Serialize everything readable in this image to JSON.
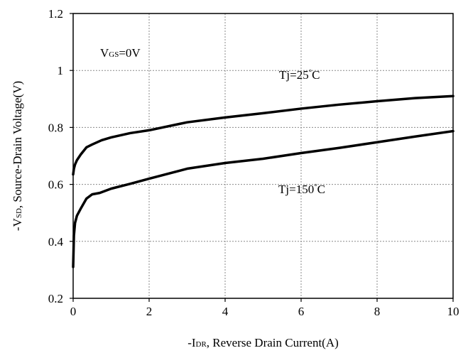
{
  "chart_data": {
    "type": "line",
    "title": "",
    "xlabel": {
      "prefix": "-I",
      "sub": "DR",
      "suffix": ", Reverse Drain Current(A)"
    },
    "ylabel": {
      "prefix": "-V",
      "sub": "SD",
      "suffix": ", Source-Drain Voltage(V)"
    },
    "xlim": [
      0,
      10
    ],
    "ylim": [
      0.2,
      1.2
    ],
    "xticks": [
      0,
      2,
      4,
      6,
      8,
      10
    ],
    "yticks": [
      0.2,
      0.4,
      0.6,
      0.8,
      1,
      1.2
    ],
    "xtick_labels": [
      "0",
      "2",
      "4",
      "6",
      "8",
      "10"
    ],
    "ytick_labels": [
      "0.2",
      "0.4",
      "0.6",
      "0.8",
      "1",
      "1.2"
    ],
    "grid": true,
    "annotations": [
      {
        "text": "VGS=0V",
        "prefix": "V",
        "sub": "GS",
        "suffix": "=0V"
      },
      {
        "text": "Tj=25°C",
        "prefix": "Tj=25",
        "sub": "°",
        "suffix": "C"
      },
      {
        "text": "Tj=150°C",
        "prefix": "Tj=150",
        "sub": "°",
        "suffix": "C"
      }
    ],
    "series": [
      {
        "x": [
          0,
          0.02,
          0.05,
          0.1,
          0.2,
          0.35,
          0.5,
          0.75,
          1.0,
          1.5,
          2.0,
          3.0,
          4.0,
          5.0,
          6.0,
          7.0,
          8.0,
          9.0,
          10.0
        ],
        "y": [
          0.635,
          0.655,
          0.67,
          0.685,
          0.705,
          0.73,
          0.74,
          0.755,
          0.765,
          0.78,
          0.79,
          0.818,
          0.835,
          0.85,
          0.866,
          0.88,
          0.892,
          0.903,
          0.91
        ]
      },
      {
        "x": [
          0,
          0.02,
          0.05,
          0.1,
          0.2,
          0.35,
          0.5,
          0.7,
          1.0,
          1.5,
          2.0,
          3.0,
          4.0,
          5.0,
          6.0,
          7.0,
          8.0,
          9.0,
          10.0
        ],
        "y": [
          0.31,
          0.42,
          0.465,
          0.49,
          0.515,
          0.55,
          0.565,
          0.57,
          0.585,
          0.602,
          0.62,
          0.655,
          0.675,
          0.69,
          0.71,
          0.728,
          0.748,
          0.768,
          0.787
        ]
      }
    ]
  }
}
